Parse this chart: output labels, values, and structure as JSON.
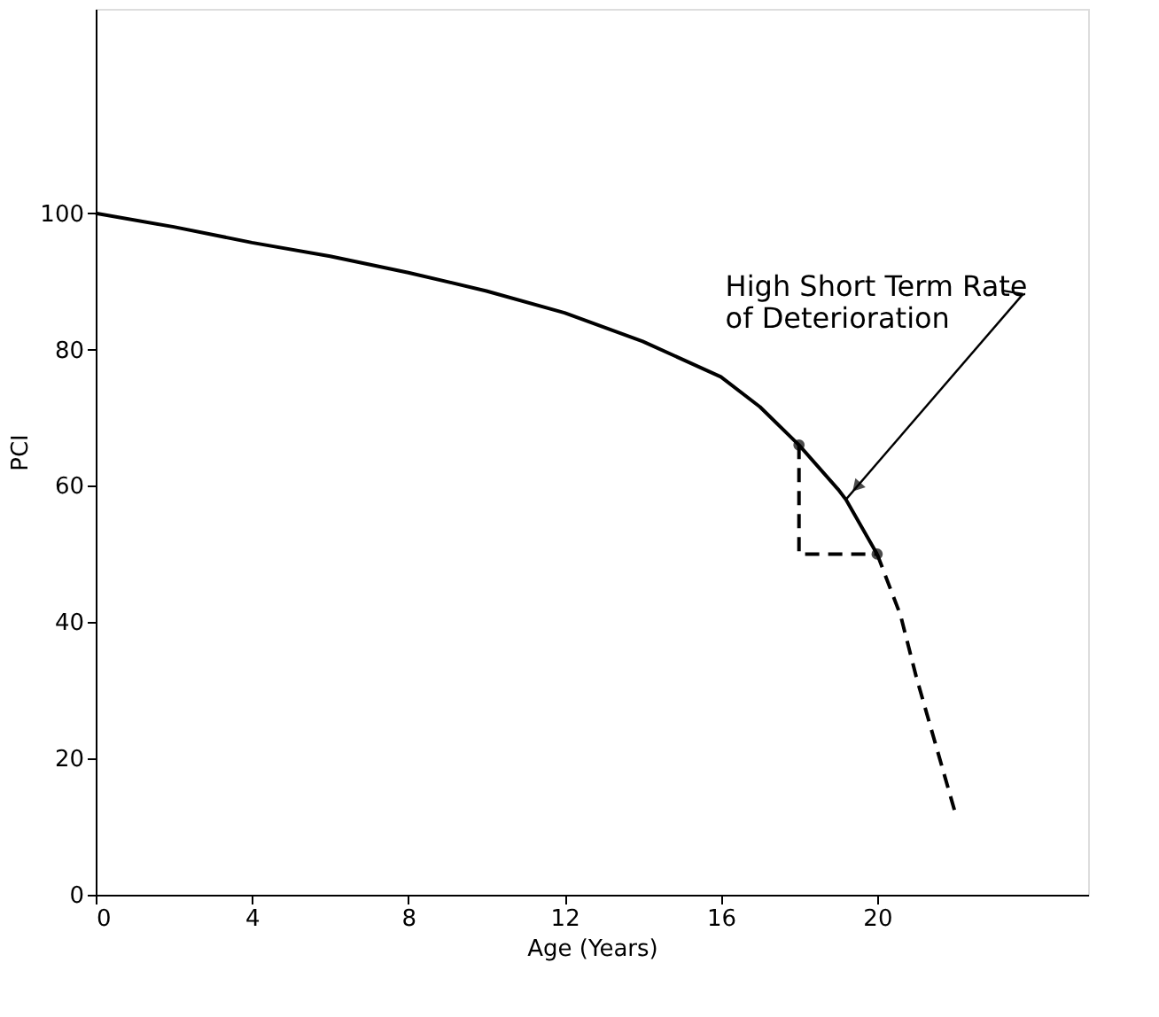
{
  "chart_data": {
    "type": "line",
    "xlabel": "Age (Years)",
    "ylabel": "PCI",
    "xlim": [
      0,
      25.4
    ],
    "xticks": [
      0,
      4,
      8,
      12,
      16,
      20
    ],
    "ylim": [
      0,
      130
    ],
    "yticks": [
      0,
      20,
      40,
      60,
      80,
      100
    ],
    "grid": false,
    "series": [
      {
        "line_style": "solid",
        "color": "#000000",
        "x": [
          0,
          2,
          4,
          6,
          8,
          10,
          12,
          14,
          16,
          17,
          18,
          19,
          19.2,
          20
        ],
        "values": [
          100,
          98,
          95.7,
          93.7,
          91.3,
          88.6,
          85.4,
          81.2,
          76,
          71.6,
          66,
          59.5,
          58,
          50
        ]
      },
      {
        "line_style": "dashed",
        "color": "#000000",
        "x": [
          20,
          20.6,
          21,
          21.5,
          22
        ],
        "values": [
          50,
          41,
          32,
          22,
          12
        ]
      },
      {
        "type": "line",
        "line_style": "dashed",
        "color": "#000000",
        "x": [
          18,
          18,
          20
        ],
        "values": [
          66,
          50,
          50
        ]
      },
      {
        "type": "scatter",
        "marker": "circle",
        "color": "#000000",
        "x": [
          18,
          20
        ],
        "values": [
          66,
          50
        ]
      }
    ],
    "annotations": [
      {
        "text": "High Short Term Rate\nof Deterioration",
        "x": 19.2,
        "y": 58
      }
    ]
  }
}
